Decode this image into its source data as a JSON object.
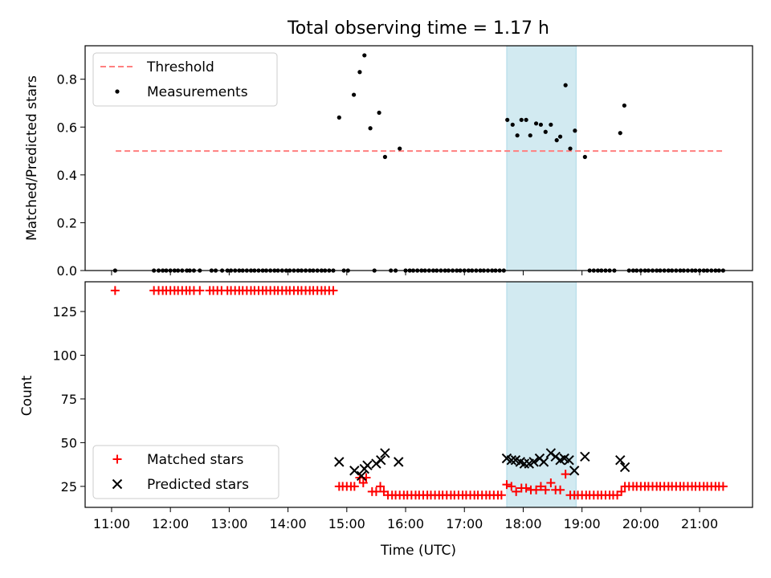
{
  "chart_data": {
    "title": "Total observing time = 1.17 h",
    "xlabel": "Time (UTC)",
    "x_ticks": [
      "11:00",
      "12:00",
      "13:00",
      "14:00",
      "15:00",
      "16:00",
      "17:00",
      "18:00",
      "19:00",
      "20:00",
      "21:00"
    ],
    "x_tick_hours": [
      11,
      12,
      13,
      14,
      15,
      16,
      17,
      18,
      19,
      20,
      21
    ],
    "xlim_hours": [
      10.55,
      21.9
    ],
    "shaded_span_hours": [
      17.72,
      18.9
    ],
    "colors": {
      "threshold": "#ff7f7f",
      "measurements": "#000000",
      "matched": "#ff0000",
      "predicted": "#000000",
      "shade": "#add8e6"
    },
    "panels": [
      {
        "type": "scatter",
        "ylabel": "Matched/Predicted stars",
        "ylim": [
          0,
          0.94
        ],
        "y_ticks": [
          "0.0",
          "0.2",
          "0.4",
          "0.6",
          "0.8"
        ],
        "y_tick_values": [
          0,
          0.2,
          0.4,
          0.6,
          0.8
        ],
        "legend": {
          "position": "top-left",
          "entries": [
            {
              "label": "Threshold",
              "marker": "dashed-line"
            },
            {
              "label": "Measurements",
              "marker": "dot"
            }
          ]
        },
        "threshold": {
          "name": "Threshold",
          "y": 0.5,
          "x_range": [
            11.07,
            21.4
          ]
        },
        "series": [
          {
            "name": "Measurements",
            "marker": "dot",
            "x": [
              11.06,
              11.72,
              11.8,
              11.87,
              11.93,
              12.0,
              12.07,
              12.13,
              12.2,
              12.28,
              12.33,
              12.4,
              12.5,
              12.7,
              12.77,
              12.88,
              12.97,
              13.03,
              13.1,
              13.17,
              13.23,
              13.3,
              13.37,
              13.43,
              13.5,
              13.57,
              13.63,
              13.7,
              13.77,
              13.83,
              13.9,
              13.97,
              14.03,
              14.1,
              14.17,
              14.23,
              14.3,
              14.37,
              14.43,
              14.5,
              14.57,
              14.63,
              14.7,
              14.77,
              14.87,
              14.95,
              15.02,
              15.12,
              15.22,
              15.3,
              15.4,
              15.47,
              15.55,
              15.65,
              15.75,
              15.83,
              15.9,
              16.0,
              16.07,
              16.13,
              16.2,
              16.27,
              16.33,
              16.4,
              16.47,
              16.53,
              16.6,
              16.67,
              16.73,
              16.8,
              16.87,
              16.93,
              17.0,
              17.07,
              17.13,
              17.2,
              17.27,
              17.33,
              17.4,
              17.47,
              17.53,
              17.6,
              17.67,
              17.73,
              17.82,
              17.9,
              17.97,
              18.05,
              18.12,
              18.22,
              18.3,
              18.38,
              18.47,
              18.57,
              18.63,
              18.72,
              18.8,
              18.88,
              19.05,
              19.13,
              19.2,
              19.27,
              19.33,
              19.4,
              19.47,
              19.55,
              19.65,
              19.72,
              19.8,
              19.87,
              19.93,
              20.0,
              20.07,
              20.13,
              20.2,
              20.27,
              20.33,
              20.4,
              20.47,
              20.53,
              20.6,
              20.67,
              20.73,
              20.8,
              20.87,
              20.93,
              21.0,
              21.07,
              21.13,
              21.2,
              21.27,
              21.33,
              21.4
            ],
            "y": [
              0,
              0,
              0,
              0,
              0,
              0,
              0,
              0,
              0,
              0,
              0,
              0,
              0,
              0,
              0,
              0,
              0,
              0,
              0,
              0,
              0,
              0,
              0,
              0,
              0,
              0,
              0,
              0,
              0,
              0,
              0,
              0,
              0,
              0,
              0,
              0,
              0,
              0,
              0,
              0,
              0,
              0,
              0,
              0,
              0.64,
              0,
              0,
              0.735,
              0.83,
              0.9,
              0.595,
              0,
              0.66,
              0.475,
              0,
              0,
              0.51,
              0,
              0,
              0,
              0,
              0,
              0,
              0,
              0,
              0,
              0,
              0,
              0,
              0,
              0,
              0,
              0,
              0,
              0,
              0,
              0,
              0,
              0,
              0,
              0,
              0,
              0,
              0.63,
              0.61,
              0.565,
              0.63,
              0.63,
              0.565,
              0.615,
              0.61,
              0.58,
              0.61,
              0.545,
              0.56,
              0.775,
              0.51,
              0.585,
              0.475,
              0,
              0,
              0,
              0,
              0,
              0,
              0,
              0.575,
              0.69,
              0,
              0,
              0,
              0,
              0,
              0,
              0,
              0,
              0,
              0,
              0,
              0,
              0,
              0,
              0,
              0,
              0,
              0,
              0,
              0,
              0,
              0,
              0,
              0,
              0
            ]
          }
        ]
      },
      {
        "type": "scatter",
        "ylabel": "Count",
        "ylim": [
          13,
          142
        ],
        "y_ticks": [
          "25",
          "50",
          "75",
          "100",
          "125"
        ],
        "y_tick_values": [
          25,
          50,
          75,
          100,
          125
        ],
        "legend": {
          "position": "bottom-left",
          "entries": [
            {
              "label": "Matched stars",
              "marker": "plus"
            },
            {
              "label": "Predicted stars",
              "marker": "x"
            }
          ]
        },
        "series": [
          {
            "name": "Matched stars",
            "marker": "plus",
            "x": [
              11.06,
              11.72,
              11.8,
              11.87,
              11.93,
              12.0,
              12.07,
              12.13,
              12.2,
              12.27,
              12.33,
              12.4,
              12.5,
              12.67,
              12.73,
              12.8,
              12.87,
              12.97,
              13.03,
              13.1,
              13.17,
              13.23,
              13.3,
              13.37,
              13.43,
              13.5,
              13.57,
              13.63,
              13.7,
              13.77,
              13.83,
              13.9,
              13.97,
              14.03,
              14.1,
              14.17,
              14.23,
              14.3,
              14.37,
              14.43,
              14.5,
              14.57,
              14.63,
              14.7,
              14.77,
              14.87,
              14.93,
              15.0,
              15.07,
              15.13,
              15.22,
              15.28,
              15.33,
              15.43,
              15.5,
              15.57,
              15.63,
              15.7,
              15.77,
              15.83,
              15.9,
              15.97,
              16.03,
              16.1,
              16.17,
              16.23,
              16.3,
              16.37,
              16.43,
              16.5,
              16.57,
              16.63,
              16.7,
              16.77,
              16.83,
              16.9,
              16.97,
              17.03,
              17.1,
              17.17,
              17.23,
              17.3,
              17.37,
              17.43,
              17.5,
              17.57,
              17.63,
              17.72,
              17.8,
              17.88,
              17.97,
              18.05,
              18.13,
              18.22,
              18.3,
              18.38,
              18.47,
              18.55,
              18.63,
              18.72,
              18.8,
              18.87,
              18.93,
              19.0,
              19.07,
              19.13,
              19.2,
              19.27,
              19.33,
              19.4,
              19.47,
              19.53,
              19.6,
              19.67,
              19.73,
              19.8,
              19.87,
              19.93,
              20.0,
              20.07,
              20.13,
              20.2,
              20.27,
              20.33,
              20.4,
              20.47,
              20.53,
              20.6,
              20.67,
              20.73,
              20.8,
              20.87,
              20.93,
              21.0,
              21.07,
              21.13,
              21.2,
              21.27,
              21.33,
              21.4
            ],
            "y": [
              137,
              137,
              137,
              137,
              137,
              137,
              137,
              137,
              137,
              137,
              137,
              137,
              137,
              137,
              137,
              137,
              137,
              137,
              137,
              137,
              137,
              137,
              137,
              137,
              137,
              137,
              137,
              137,
              137,
              137,
              137,
              137,
              137,
              137,
              137,
              137,
              137,
              137,
              137,
              137,
              137,
              137,
              137,
              137,
              137,
              25,
              25,
              25,
              25,
              25,
              30,
              27,
              30,
              22,
              22,
              25,
              22,
              20,
              20,
              20,
              20,
              20,
              20,
              20,
              20,
              20,
              20,
              20,
              20,
              20,
              20,
              20,
              20,
              20,
              20,
              20,
              20,
              20,
              20,
              20,
              20,
              20,
              20,
              20,
              20,
              20,
              20,
              26,
              25,
              22,
              24,
              24,
              23,
              23,
              25,
              23,
              27,
              23,
              23,
              32,
              20,
              20,
              20,
              20,
              20,
              20,
              20,
              20,
              20,
              20,
              20,
              20,
              20,
              22,
              25,
              25,
              25,
              25,
              25,
              25,
              25,
              25,
              25,
              25,
              25,
              25,
              25,
              25,
              25,
              25,
              25,
              25,
              25,
              25,
              25,
              25,
              25,
              25,
              25,
              25
            ]
          },
          {
            "name": "Predicted stars",
            "marker": "x",
            "x": [
              14.87,
              15.13,
              15.25,
              15.3,
              15.35,
              15.5,
              15.58,
              15.65,
              15.88,
              17.72,
              17.8,
              17.87,
              17.95,
              18.02,
              18.1,
              18.18,
              18.28,
              18.35,
              18.47,
              18.55,
              18.63,
              18.7,
              18.78,
              18.87,
              19.05,
              19.65,
              19.73
            ],
            "y": [
              39,
              34,
              31,
              35,
              37,
              38,
              40,
              44,
              39,
              41,
              40,
              40,
              39,
              38,
              38,
              39,
              41,
              39,
              44,
              42,
              40,
              41,
              40,
              34,
              42,
              40,
              36
            ]
          }
        ]
      }
    ]
  }
}
